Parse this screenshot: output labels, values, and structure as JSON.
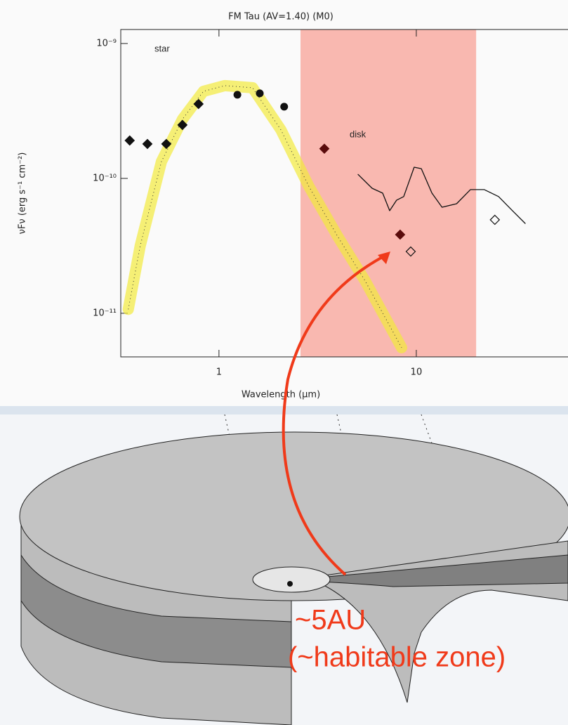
{
  "chart_data": {
    "type": "scatter",
    "title": "FM Tau (AV=1.40) (M0)",
    "x_label": "Wavelength (μm)",
    "y_label": "νFν (erg s⁻¹ cm⁻²)",
    "log_x": true,
    "log_y": true,
    "xlim": [
      0.318,
      58.7
    ],
    "ylim": [
      4.75e-12,
      1.27e-09
    ],
    "xticks": [
      1,
      10
    ],
    "yticks": [
      {
        "value": 1e-09,
        "label": "10⁻⁹"
      },
      {
        "value": 1e-10,
        "label": "10⁻¹⁰"
      },
      {
        "value": 1e-11,
        "label": "10⁻¹¹"
      }
    ],
    "shaded_region": {
      "x": [
        2.59,
        20.1
      ],
      "color": "#f9b8b0"
    },
    "annotations": [
      {
        "text": "star"
      },
      {
        "text": "disk"
      }
    ],
    "series": [
      {
        "kind": "line",
        "color": "#f2ea3c",
        "x": [
          0.347,
          0.399,
          0.511,
          0.653,
          0.835,
          1.07,
          1.48,
          2.06,
          2.85,
          3.96,
          5.5,
          8.42
        ],
        "values": [
          1.07e-11,
          3.16e-11,
          1.33e-10,
          2.74e-10,
          4.42e-10,
          4.87e-10,
          4.7e-10,
          2.29e-10,
          8.77e-11,
          3.79e-11,
          1.74e-11,
          5.56e-12
        ]
      },
      {
        "kind": "line",
        "color": "#111111",
        "x": [
          5.07,
          5.97,
          6.75,
          7.33,
          7.95,
          8.63,
          9.75,
          10.6,
          12.0,
          13.5,
          16.0,
          18.8,
          22.1,
          26.1,
          30.7,
          35.6
        ],
        "values": [
          1.07e-10,
          8.45e-11,
          7.78e-11,
          5.76e-11,
          6.9e-11,
          7.33e-11,
          1.21e-10,
          1.18e-10,
          7.78e-11,
          6.11e-11,
          6.49e-11,
          8.26e-11,
          8.26e-11,
          7.33e-11,
          5.76e-11,
          4.64e-11
        ]
      },
      {
        "kind": "diamond",
        "color": "#111111",
        "x": [
          0.353,
          0.434,
          0.541,
          0.653,
          0.788
        ],
        "values": [
          1.91e-10,
          1.8e-10,
          1.8e-10,
          2.49e-10,
          3.56e-10
        ]
      },
      {
        "kind": "diamond",
        "color": "#5a0c0c",
        "x": [
          3.42,
          8.28
        ],
        "values": [
          1.66e-10,
          3.83e-11
        ]
      },
      {
        "kind": "circle",
        "color": "#111111",
        "x": [
          1.24,
          1.61,
          2.14
        ],
        "values": [
          4.17e-10,
          4.27e-10,
          3.4e-10
        ]
      },
      {
        "kind": "open-diamond",
        "color": "#111111",
        "x": [
          9.37,
          25.0
        ],
        "values": [
          2.87e-11,
          4.93e-11
        ]
      }
    ]
  },
  "diagram": {
    "labels": [
      "~5AU",
      "(~habitable zone)"
    ]
  }
}
